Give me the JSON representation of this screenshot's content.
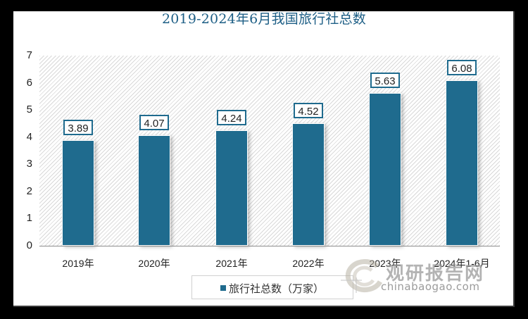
{
  "chart_data": {
    "type": "bar",
    "title": "2019-2024年6月我国旅行社总数",
    "categories": [
      "2019年",
      "2020年",
      "2021年",
      "2022年",
      "2023年",
      "2024年1-6月"
    ],
    "series": [
      {
        "name": "旅行社总数（万家）",
        "values": [
          3.89,
          4.07,
          4.24,
          4.52,
          5.63,
          6.08
        ],
        "color": "#1f6b8e"
      }
    ],
    "value_labels": [
      "3.89",
      "4.07",
      "4.24",
      "4.52",
      "5.63",
      "6.08"
    ],
    "xlabel": "",
    "ylabel": "",
    "ylim": [
      0,
      7
    ],
    "yticks": [
      "0",
      "1",
      "2",
      "3",
      "4",
      "5",
      "6",
      "7"
    ],
    "grid": false,
    "legend_position": "bottom"
  },
  "legend": {
    "label": "旅行社总数（万家）"
  },
  "watermark": {
    "cn": "观研报告网",
    "en": "chinabaogao.com"
  },
  "colors": {
    "bar": "#1f6b8e",
    "title": "#1e5f86"
  }
}
